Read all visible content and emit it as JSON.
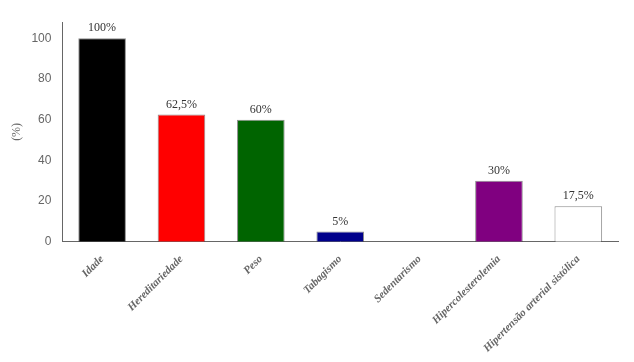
{
  "chart_data": {
    "type": "bar",
    "categories": [
      "Idade",
      "Hereditariedade",
      "Peso",
      "Tabagismo",
      "Sedentarismo",
      "Hipercolesterolemia",
      "Hipertensão arterial sistólica"
    ],
    "values": [
      100,
      62.5,
      60,
      5,
      0,
      30,
      17.5
    ],
    "value_labels": [
      "100%",
      "62,5%",
      "60%",
      "5%",
      null,
      "30%",
      "17,5%"
    ],
    "data_labels": true,
    "colors": [
      "#000000",
      "#ff0000",
      "#006400",
      "#00008b",
      "#ffffff",
      "#800080",
      "#ffffff"
    ],
    "ylabel": "(%)",
    "ylim": [
      0,
      108
    ],
    "yticks": [
      0,
      20,
      40,
      60,
      80,
      100
    ],
    "grid": false
  }
}
